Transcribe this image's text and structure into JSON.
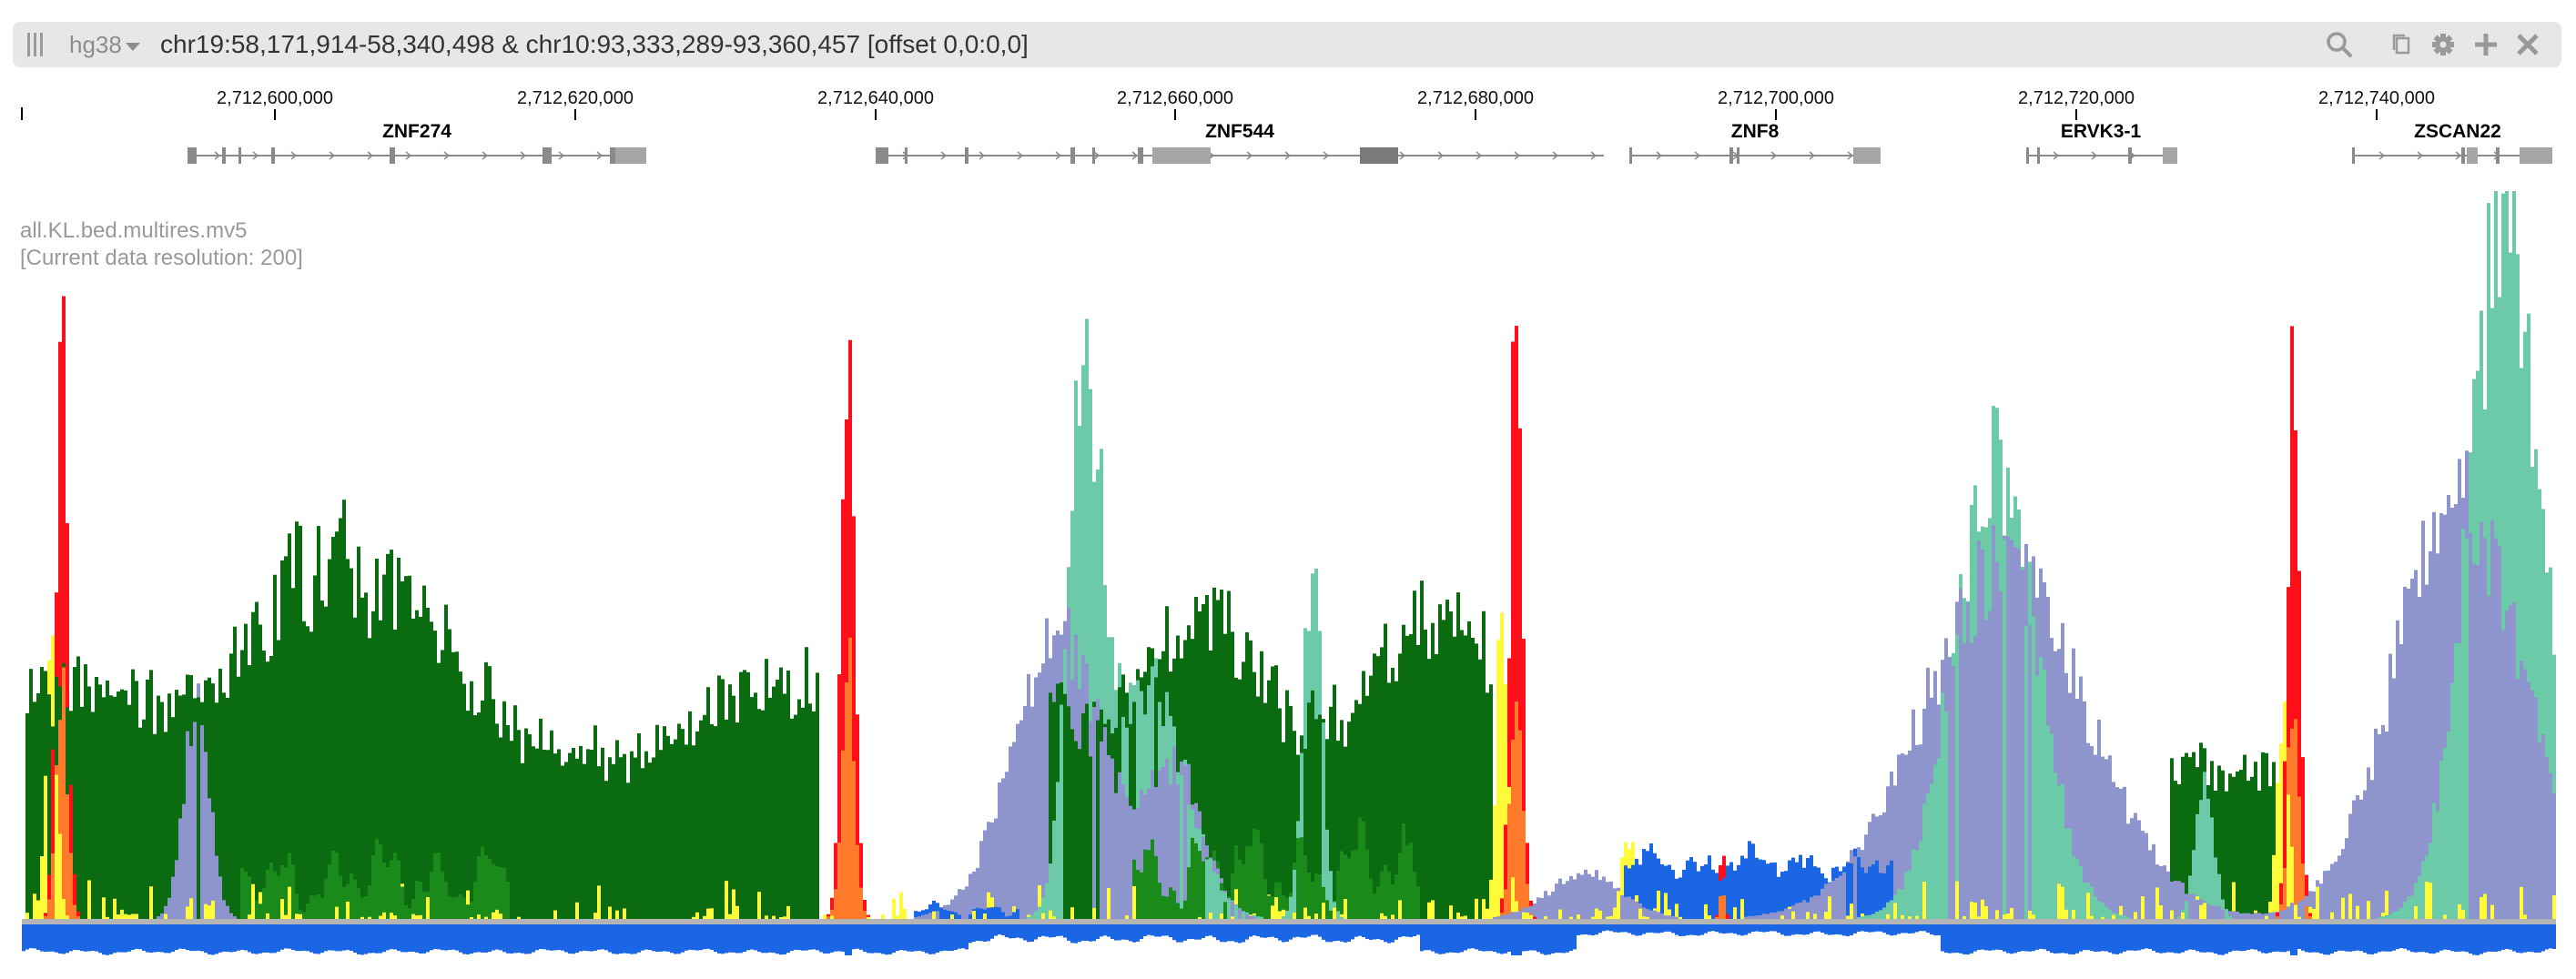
{
  "toolbar": {
    "assembly": "hg38",
    "locus": "chr19:58,171,914-58,340,498 & chr10:93,333,289-93,360,457 [offset 0,0:0,0]",
    "icons": [
      "drag-handle-icon",
      "chevron-down-icon",
      "search-icon",
      "copy-icon",
      "gear-icon",
      "plus-icon",
      "close-icon"
    ]
  },
  "axis": {
    "ticks": [
      "2,712,600,000",
      "2,712,620,000",
      "2,712,640,000",
      "2,712,660,000",
      "2,712,680,000",
      "2,712,700,000",
      "2,712,720,000",
      "2,712,740,000"
    ]
  },
  "genes": [
    {
      "name": "ZNF274"
    },
    {
      "name": "ZNF544"
    },
    {
      "name": "ZNF8"
    },
    {
      "name": "ERVK3-1"
    },
    {
      "name": "ZSCAN22"
    }
  ],
  "track": {
    "title": "all.KL.bed.multires.mv5",
    "resolution": "[Current data resolution: 200]"
  },
  "colors": {
    "red": "#fe0f1a",
    "orange": "#ff7a2a",
    "yellow": "#fffb3a",
    "dark_green": "#0b6b10",
    "green": "#1a8a1a",
    "teal": "#6ccaa8",
    "lavender": "#8e94cc",
    "blue": "#1a66e5",
    "gray": "#b5b5b5"
  }
}
